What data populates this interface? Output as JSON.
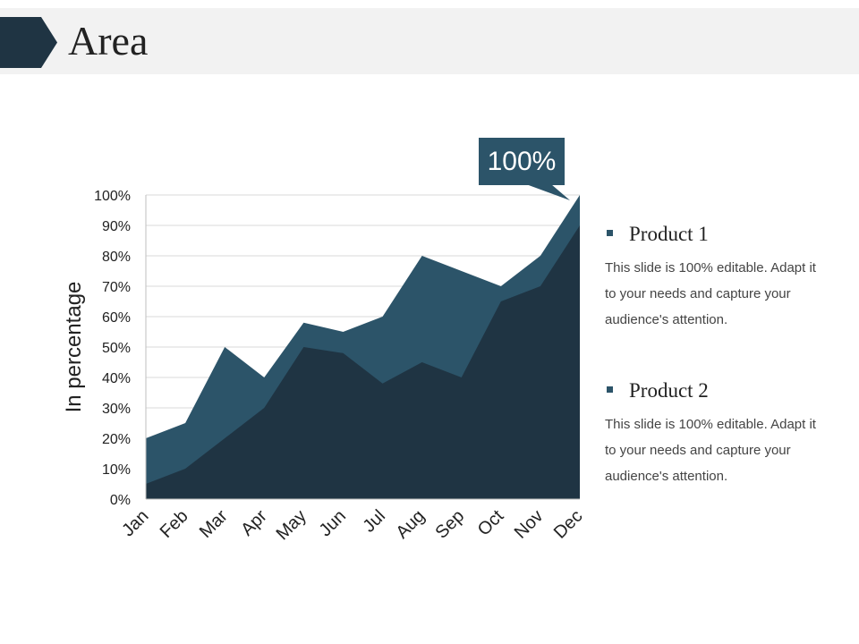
{
  "slide": {
    "title": "Area"
  },
  "colors": {
    "dark": "#1f3443",
    "mid": "#2c5469",
    "title_bg": "#f2f2f2",
    "grid": "#d9d9d9",
    "text": "#222222"
  },
  "callout": {
    "text": "100%"
  },
  "legend": [
    {
      "name": "Product 1",
      "description": "This slide is 100% editable. Adapt it to your needs and capture your audience's attention."
    },
    {
      "name": "Product 2",
      "description": "This slide is 100% editable. Adapt it to your needs and capture your audience's attention."
    }
  ],
  "chart_data": {
    "type": "area",
    "categories": [
      "Jan",
      "Feb",
      "Mar",
      "Apr",
      "May",
      "Jun",
      "Jul",
      "Aug",
      "Sep",
      "Oct",
      "Nov",
      "Dec"
    ],
    "ylabel": "In percentage",
    "ylim": [
      0,
      100
    ],
    "ytick_labels": [
      "0%",
      "10%",
      "20%",
      "30%",
      "40%",
      "50%",
      "60%",
      "70%",
      "80%",
      "90%",
      "100%"
    ],
    "grid": true,
    "series": [
      {
        "name": "Product 1",
        "values": [
          20,
          25,
          50,
          40,
          58,
          55,
          60,
          80,
          75,
          70,
          80,
          100
        ],
        "color": "#2c5469"
      },
      {
        "name": "Product 2",
        "values": [
          5,
          10,
          20,
          30,
          50,
          48,
          38,
          45,
          40,
          65,
          70,
          90
        ],
        "color": "#1f3443"
      }
    ]
  }
}
